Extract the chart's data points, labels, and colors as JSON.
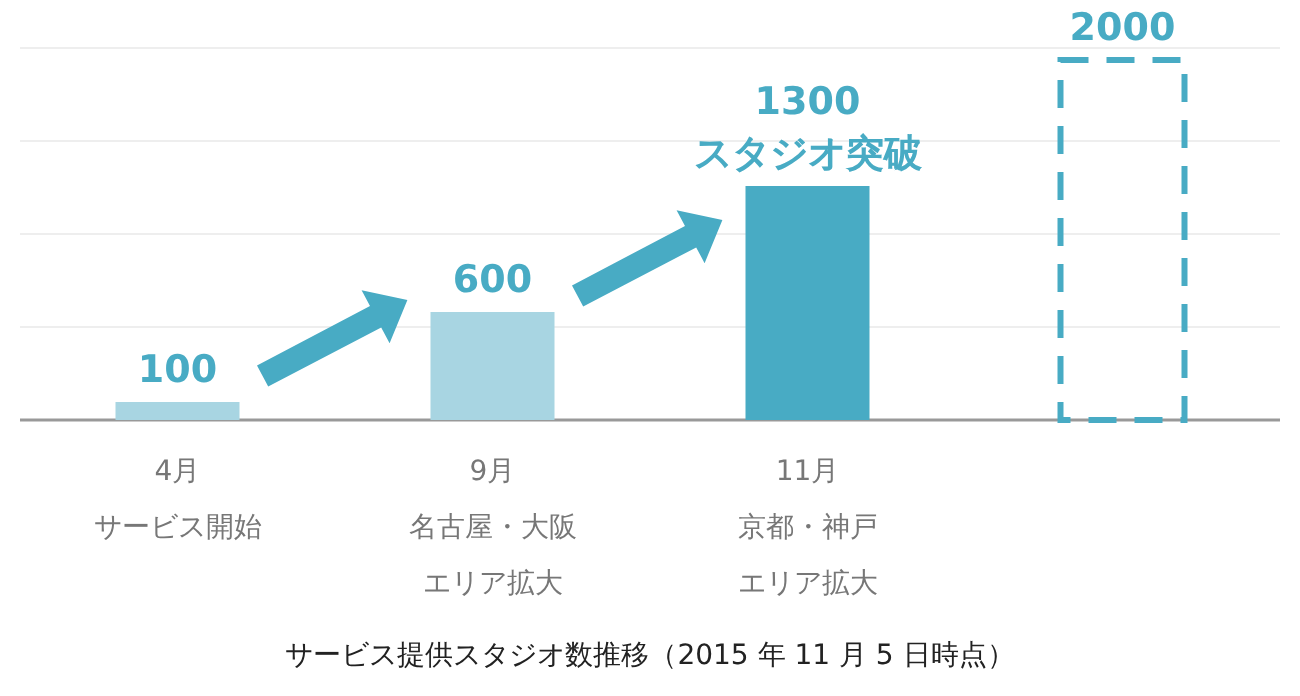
{
  "chart_data": {
    "type": "bar",
    "title": "サービス提供スタジオ数推移（2015 年 11 月 5 日時点）",
    "categories": [
      "4月",
      "9月",
      "11月",
      null
    ],
    "annotations": [
      "サービス開始",
      "名古屋・大阪",
      "エリア拡大",
      "京都・神戸",
      "エリア拡大"
    ],
    "series": [
      {
        "values": [
          100,
          600,
          1300,
          null
        ],
        "colors": [
          "#a8d5e2",
          "#a8d5e2",
          "#48abc4",
          null
        ],
        "value_labels": [
          "100",
          "600",
          "1300\nスタジオ突破",
          null
        ]
      },
      {
        "values": [
          null,
          null,
          null,
          2000
        ],
        "color": "#48abc4",
        "line_style": "dashed",
        "value_labels": [
          null,
          null,
          null,
          "2000"
        ]
      }
    ],
    "grid": true
  }
}
